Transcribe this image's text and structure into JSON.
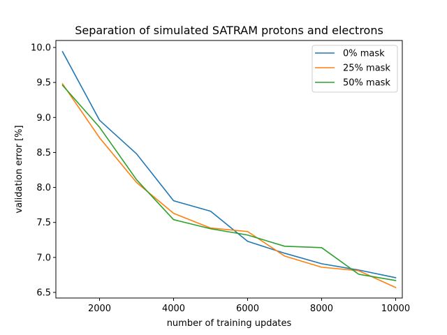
{
  "chart_data": {
    "type": "line",
    "title": "Separation of simulated SATRAM protons and electrons",
    "xlabel": "number of training updates",
    "ylabel": "validation error [%]",
    "xlim": [
      820,
      10180
    ],
    "ylim": [
      6.42,
      10.1
    ],
    "xticks": [
      2000,
      4000,
      6000,
      8000,
      10000
    ],
    "yticks": [
      6.5,
      7.0,
      7.5,
      8.0,
      8.5,
      9.0,
      9.5,
      10.0
    ],
    "xticklabels": [
      "2000",
      "4000",
      "6000",
      "8000",
      "10000"
    ],
    "yticklabels": [
      "6.5",
      "7.0",
      "7.5",
      "8.0",
      "8.5",
      "9.0",
      "9.5",
      "10.0"
    ],
    "grid": false,
    "legend_position": "top-right",
    "x": [
      1000,
      2000,
      3000,
      4000,
      5000,
      6000,
      7000,
      8000,
      9000,
      10000
    ],
    "series": [
      {
        "name": "0% mask",
        "color": "#1f77b4",
        "values": [
          9.94,
          8.96,
          8.48,
          7.81,
          7.66,
          7.23,
          7.06,
          6.91,
          6.82,
          6.71
        ]
      },
      {
        "name": "25% mask",
        "color": "#ff7f0e",
        "values": [
          9.48,
          8.71,
          8.07,
          7.63,
          7.42,
          7.37,
          7.02,
          6.86,
          6.81,
          6.57
        ]
      },
      {
        "name": "50% mask",
        "color": "#2ca02c",
        "values": [
          9.46,
          8.86,
          8.11,
          7.54,
          7.41,
          7.32,
          7.16,
          7.14,
          6.76,
          6.67
        ]
      }
    ]
  }
}
